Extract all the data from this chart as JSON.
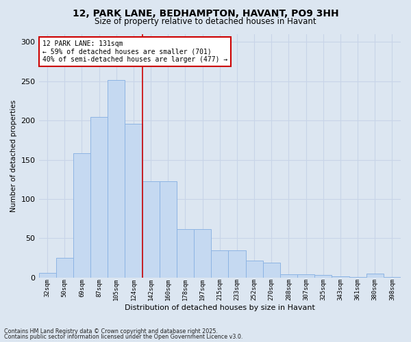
{
  "title_line1": "12, PARK LANE, BEDHAMPTON, HAVANT, PO9 3HH",
  "title_line2": "Size of property relative to detached houses in Havant",
  "xlabel": "Distribution of detached houses by size in Havant",
  "ylabel": "Number of detached properties",
  "categories": [
    "32sqm",
    "50sqm",
    "69sqm",
    "87sqm",
    "105sqm",
    "124sqm",
    "142sqm",
    "160sqm",
    "178sqm",
    "197sqm",
    "215sqm",
    "233sqm",
    "252sqm",
    "270sqm",
    "288sqm",
    "307sqm",
    "325sqm",
    "343sqm",
    "361sqm",
    "380sqm",
    "398sqm"
  ],
  "values": [
    6,
    25,
    158,
    205,
    252,
    196,
    123,
    123,
    62,
    62,
    35,
    35,
    22,
    19,
    4,
    4,
    3,
    2,
    1,
    5,
    1
  ],
  "bar_color": "#c5d9f1",
  "bar_edge_color": "#8db4e3",
  "vline_index": 5.5,
  "subject_label": "12 PARK LANE: 131sqm",
  "annotation_line1": "← 59% of detached houses are smaller (701)",
  "annotation_line2": "40% of semi-detached houses are larger (477) →",
  "annotation_box_color": "#ffffff",
  "annotation_box_edge_color": "#cc0000",
  "vline_color": "#cc0000",
  "grid_color": "#c8d4e8",
  "background_color": "#dce6f1",
  "ylim": [
    0,
    310
  ],
  "yticks": [
    0,
    50,
    100,
    150,
    200,
    250,
    300
  ],
  "footer_line1": "Contains HM Land Registry data © Crown copyright and database right 2025.",
  "footer_line2": "Contains public sector information licensed under the Open Government Licence v3.0."
}
